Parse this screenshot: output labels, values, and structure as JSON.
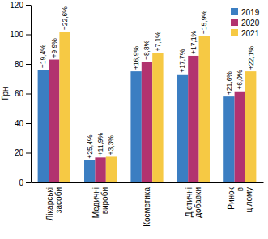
{
  "chart_data": {
    "type": "bar",
    "y_label": "Грн",
    "categories": [
      "Лікарські засоби",
      "Медичні вироби",
      "Косметика",
      "Дієтичні добавки",
      "Ринок в цілому"
    ],
    "series": [
      {
        "name": "2019",
        "color": "#3b7ec2",
        "values": [
          76,
          15,
          75,
          73,
          58
        ],
        "annotations": [
          "+19,4%",
          "+25,4%",
          "+16,9%",
          "+17,7%",
          "+21,6%"
        ]
      },
      {
        "name": "2020",
        "color": "#b2336f",
        "values": [
          83,
          16.8,
          81.6,
          85.5,
          61.5
        ],
        "annotations": [
          "+9,9%",
          "+11,9%",
          "+8,8%",
          "+17,1%",
          "+6,0%"
        ]
      },
      {
        "name": "2021",
        "color": "#f6c944",
        "values": [
          101.8,
          17.3,
          87.4,
          99.1,
          75
        ],
        "annotations": [
          "+22,6%",
          "+3,3%",
          "+7,1%",
          "+15,9%",
          "+22,1%"
        ]
      }
    ],
    "ylim": [
      0,
      120
    ],
    "yticks": [
      0,
      20,
      40,
      60,
      80,
      100,
      120
    ],
    "grid": false,
    "legend": "upper right"
  }
}
